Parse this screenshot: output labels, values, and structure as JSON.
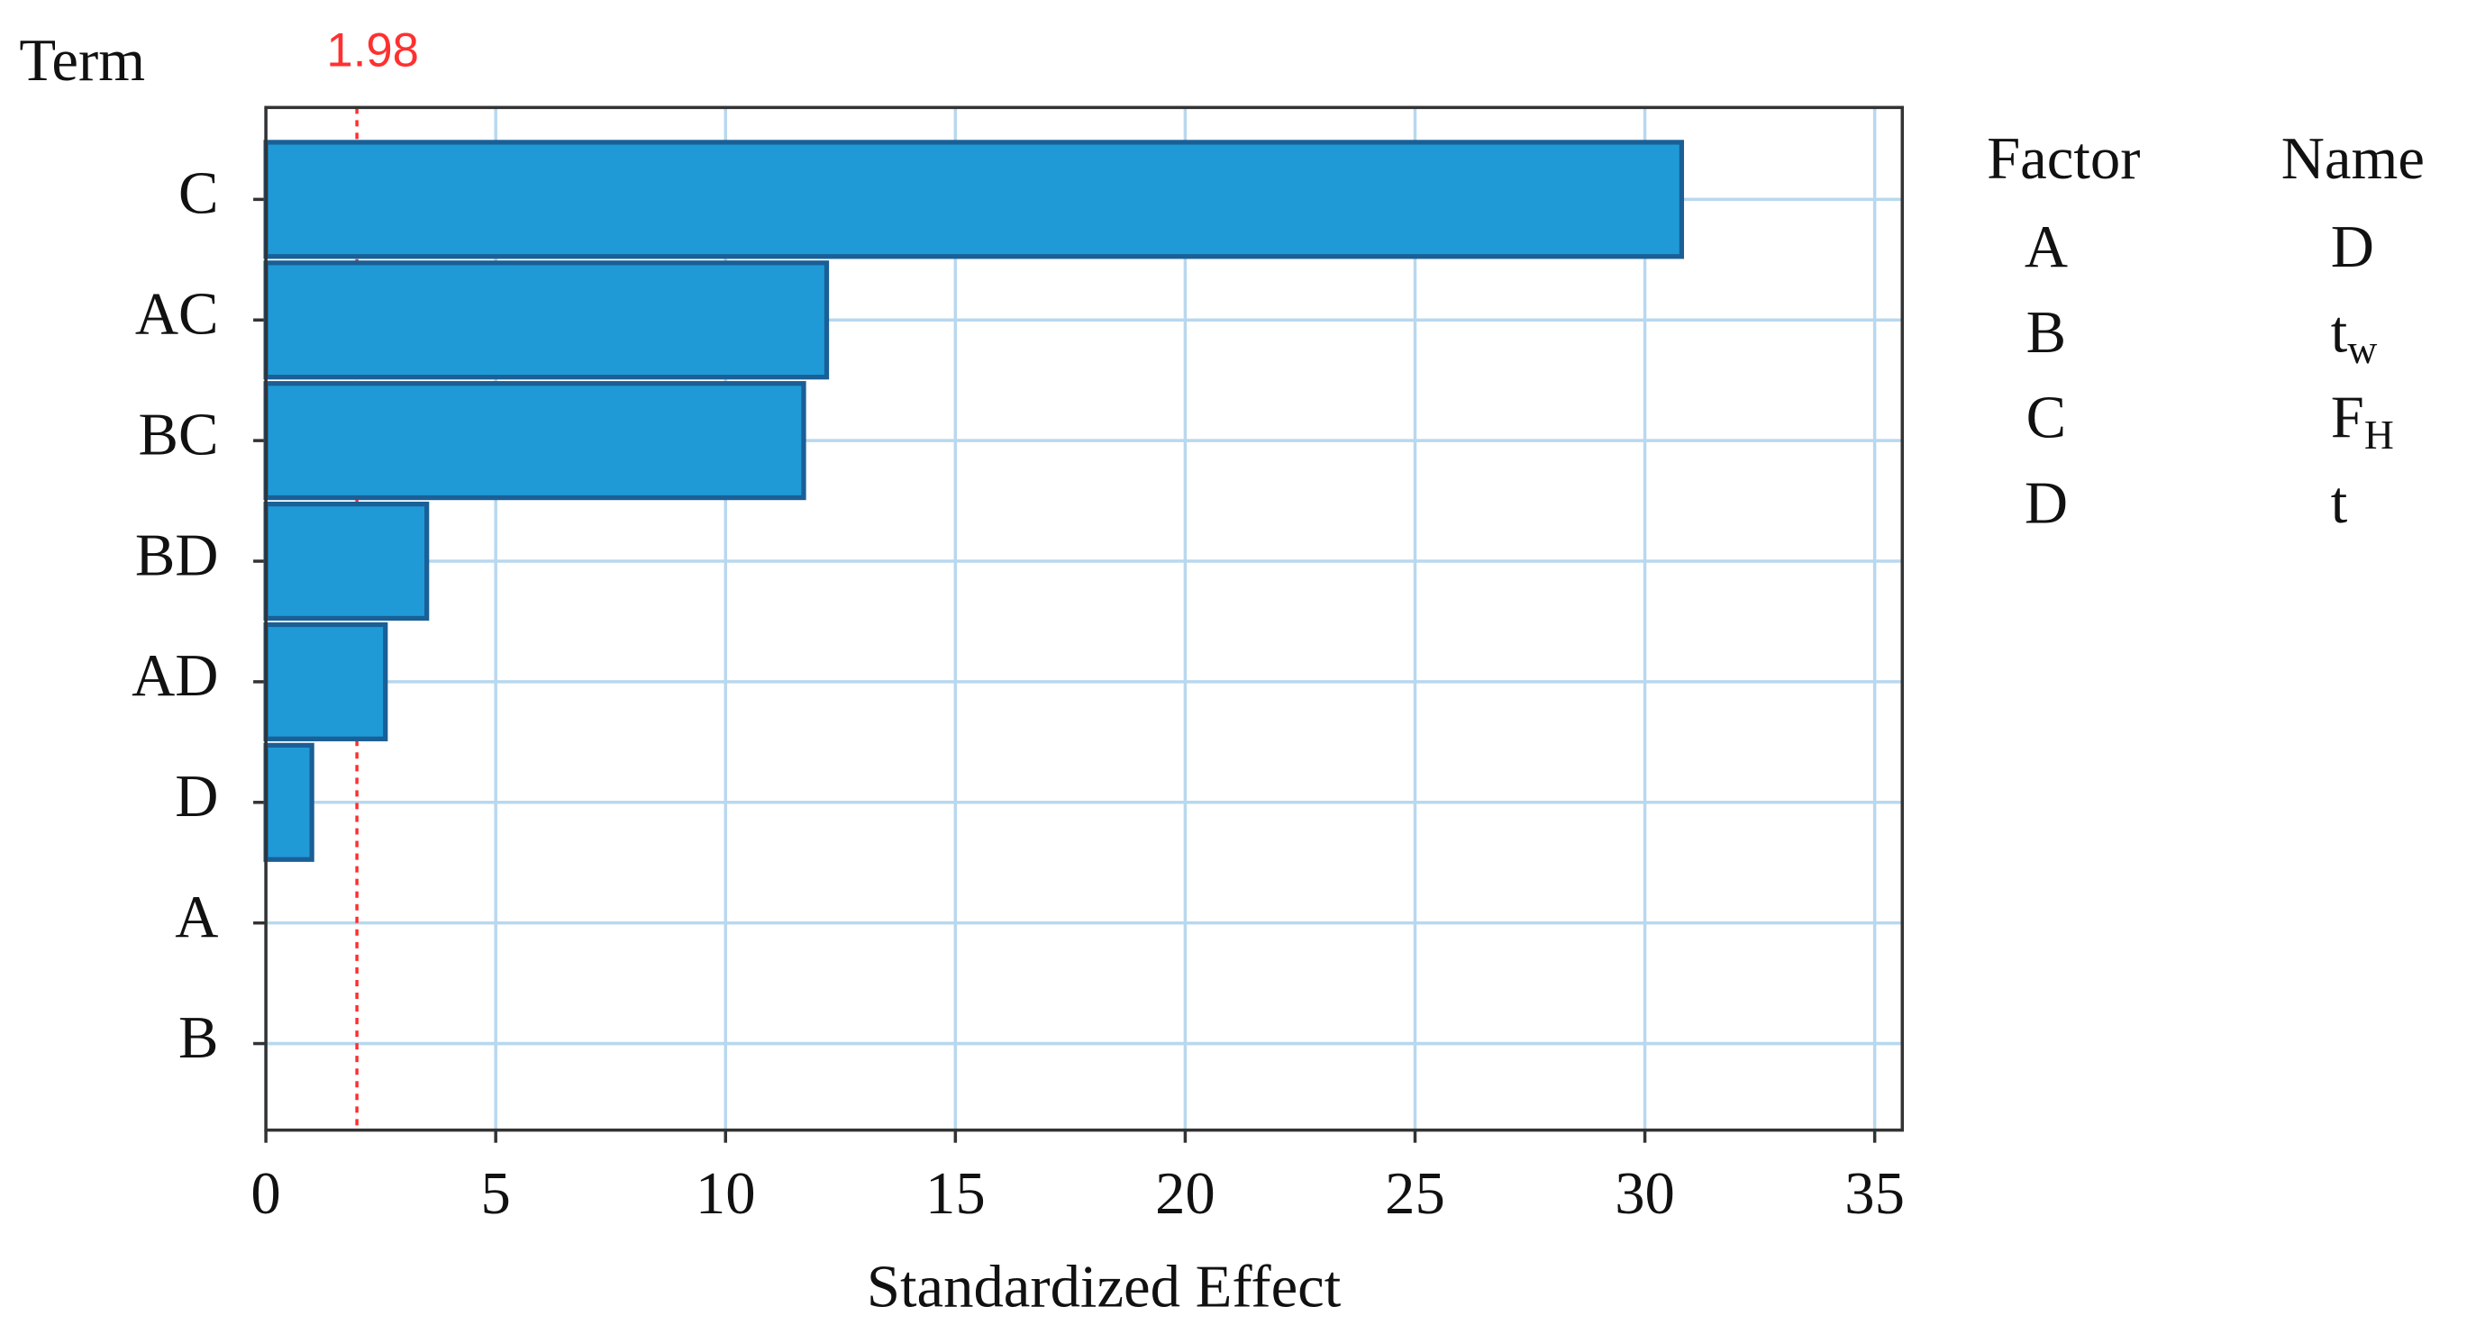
{
  "chart_data": {
    "type": "bar",
    "orientation": "horizontal",
    "y_label": "Term",
    "x_label": "Standardized Effect",
    "categories": [
      "C",
      "AC",
      "BC",
      "BD",
      "AD",
      "D",
      "A",
      "B"
    ],
    "values": [
      30.8,
      12.2,
      11.7,
      3.5,
      2.6,
      1.0,
      0,
      0
    ],
    "color": "#1f9ad6",
    "edge_color": "#1a5f96",
    "xlim": [
      0,
      35.6
    ],
    "xticks": [
      0,
      5,
      10,
      15,
      20,
      25,
      30,
      35
    ],
    "grid": true,
    "reference_line": 1.98,
    "reference_color": "#ff3030",
    "factor_table": {
      "headers": [
        "Factor",
        "Name"
      ],
      "rows": [
        {
          "factor": "A",
          "name": "D"
        },
        {
          "factor": "B",
          "name": "t",
          "sub": "w"
        },
        {
          "factor": "C",
          "name": "F",
          "sub": "H"
        },
        {
          "factor": "D",
          "name": "t"
        }
      ]
    }
  }
}
